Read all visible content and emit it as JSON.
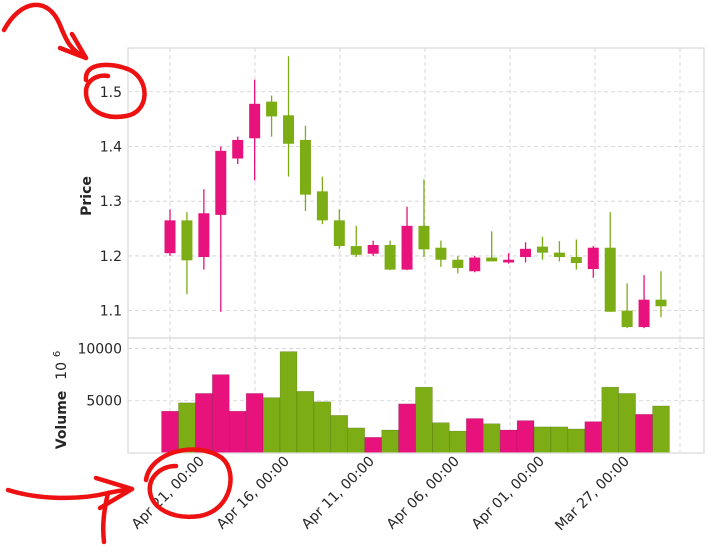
{
  "chart_data": [
    {
      "type": "candlestick",
      "ylabel": "Price",
      "ylim": [
        1.05,
        1.58
      ],
      "yticks": [
        1.1,
        1.2,
        1.3,
        1.4,
        1.5
      ],
      "ytick_labels": [
        "1.1",
        "1.2",
        "1.3",
        "1.4",
        "1.5"
      ],
      "grid": true,
      "x_order": "descending dates left to right",
      "xtick_labels": [
        "Apr 21, 00:00",
        "Apr 16, 00:00",
        "Apr 11, 00:00",
        "Apr 06, 00:00",
        "Apr 01, 00:00",
        "Mar 27, 00:00"
      ],
      "up_color": "#7cad14",
      "down_color": "#e8127c",
      "candles": [
        {
          "o": 1.205,
          "h": 1.285,
          "l": 1.2,
          "c": 1.265,
          "dir": "down"
        },
        {
          "o": 1.265,
          "h": 1.28,
          "l": 1.13,
          "c": 1.192,
          "dir": "up"
        },
        {
          "o": 1.198,
          "h": 1.322,
          "l": 1.175,
          "c": 1.278,
          "dir": "down"
        },
        {
          "o": 1.275,
          "h": 1.4,
          "l": 1.098,
          "c": 1.392,
          "dir": "down"
        },
        {
          "o": 1.378,
          "h": 1.418,
          "l": 1.368,
          "c": 1.412,
          "dir": "down"
        },
        {
          "o": 1.415,
          "h": 1.522,
          "l": 1.338,
          "c": 1.478,
          "dir": "down"
        },
        {
          "o": 1.482,
          "h": 1.493,
          "l": 1.418,
          "c": 1.455,
          "dir": "up"
        },
        {
          "o": 1.457,
          "h": 1.565,
          "l": 1.345,
          "c": 1.405,
          "dir": "up"
        },
        {
          "o": 1.412,
          "h": 1.438,
          "l": 1.282,
          "c": 1.312,
          "dir": "up"
        },
        {
          "o": 1.318,
          "h": 1.345,
          "l": 1.258,
          "c": 1.265,
          "dir": "up"
        },
        {
          "o": 1.265,
          "h": 1.285,
          "l": 1.213,
          "c": 1.218,
          "dir": "up"
        },
        {
          "o": 1.218,
          "h": 1.255,
          "l": 1.198,
          "c": 1.202,
          "dir": "up"
        },
        {
          "o": 1.204,
          "h": 1.228,
          "l": 1.2,
          "c": 1.22,
          "dir": "down"
        },
        {
          "o": 1.22,
          "h": 1.228,
          "l": 1.174,
          "c": 1.175,
          "dir": "up"
        },
        {
          "o": 1.175,
          "h": 1.29,
          "l": 1.174,
          "c": 1.255,
          "dir": "down"
        },
        {
          "o": 1.255,
          "h": 1.34,
          "l": 1.198,
          "c": 1.212,
          "dir": "up"
        },
        {
          "o": 1.215,
          "h": 1.228,
          "l": 1.18,
          "c": 1.193,
          "dir": "up"
        },
        {
          "o": 1.193,
          "h": 1.2,
          "l": 1.168,
          "c": 1.178,
          "dir": "up"
        },
        {
          "o": 1.172,
          "h": 1.2,
          "l": 1.17,
          "c": 1.197,
          "dir": "down"
        },
        {
          "o": 1.197,
          "h": 1.245,
          "l": 1.19,
          "c": 1.19,
          "dir": "up"
        },
        {
          "o": 1.188,
          "h": 1.205,
          "l": 1.186,
          "c": 1.193,
          "dir": "down"
        },
        {
          "o": 1.198,
          "h": 1.225,
          "l": 1.188,
          "c": 1.213,
          "dir": "down"
        },
        {
          "o": 1.217,
          "h": 1.235,
          "l": 1.193,
          "c": 1.206,
          "dir": "up"
        },
        {
          "o": 1.206,
          "h": 1.227,
          "l": 1.19,
          "c": 1.198,
          "dir": "up"
        },
        {
          "o": 1.198,
          "h": 1.23,
          "l": 1.175,
          "c": 1.187,
          "dir": "up"
        },
        {
          "o": 1.176,
          "h": 1.218,
          "l": 1.16,
          "c": 1.215,
          "dir": "down"
        },
        {
          "o": 1.215,
          "h": 1.28,
          "l": 1.098,
          "c": 1.098,
          "dir": "up"
        },
        {
          "o": 1.1,
          "h": 1.15,
          "l": 1.068,
          "c": 1.07,
          "dir": "up"
        },
        {
          "o": 1.07,
          "h": 1.165,
          "l": 1.068,
          "c": 1.12,
          "dir": "down"
        },
        {
          "o": 1.12,
          "h": 1.172,
          "l": 1.088,
          "c": 1.108,
          "dir": "up"
        }
      ]
    },
    {
      "type": "bar",
      "ylabel": "Volume",
      "ylabel_exponent": "10",
      "ylabel_power": "6",
      "ylim": [
        0,
        11000
      ],
      "yticks": [
        5000,
        10000
      ],
      "ytick_labels": [
        "5000",
        "10000"
      ],
      "grid": true,
      "values": [
        4000,
        4800,
        5700,
        7500,
        4000,
        5700,
        5300,
        9700,
        5900,
        4900,
        3600,
        2400,
        1500,
        2200,
        4700,
        6300,
        2900,
        2100,
        3300,
        2800,
        2200,
        3100,
        2500,
        2500,
        2300,
        3000,
        6300,
        5700,
        3700,
        4500
      ],
      "bar_dirs": [
        "down",
        "up",
        "down",
        "down",
        "down",
        "down",
        "up",
        "up",
        "up",
        "up",
        "up",
        "up",
        "down",
        "up",
        "down",
        "up",
        "up",
        "up",
        "down",
        "up",
        "down",
        "down",
        "up",
        "up",
        "up",
        "down",
        "up",
        "up",
        "down",
        "up"
      ]
    }
  ]
}
